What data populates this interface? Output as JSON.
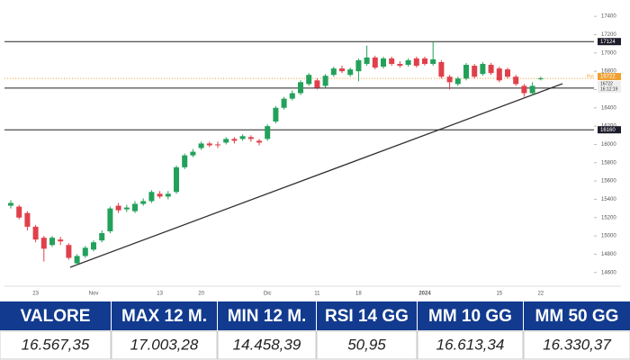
{
  "chart_data": {
    "type": "candlestick",
    "categories": [
      null,
      null,
      null,
      "23",
      null,
      null,
      null,
      null,
      null,
      null,
      "Nov",
      null,
      null,
      null,
      null,
      null,
      null,
      null,
      "13",
      null,
      null,
      null,
      null,
      "20",
      null,
      null,
      null,
      null,
      null,
      null,
      null,
      "Dic",
      null,
      null,
      null,
      null,
      null,
      "11",
      null,
      null,
      null,
      null,
      "18",
      null,
      null,
      null,
      null,
      null,
      null,
      null,
      "2024",
      null,
      null,
      null,
      null,
      null,
      null,
      null,
      null,
      "15",
      null,
      null,
      null,
      null,
      "22"
    ],
    "open": [
      15330,
      15320,
      15250,
      15100,
      14980,
      14900,
      14960,
      14900,
      14700,
      14780,
      14850,
      14950,
      15050,
      15330,
      15290,
      15270,
      15350,
      15380,
      15460,
      15430,
      15480,
      15750,
      15880,
      15960,
      16010,
      16000,
      16020,
      16060,
      16060,
      16080,
      16040,
      16060,
      16250,
      16400,
      16500,
      16560,
      16660,
      16700,
      16640,
      16760,
      16830,
      16760,
      16800,
      16880,
      16950,
      16850,
      16940,
      16880,
      16870,
      16940,
      16940,
      16880,
      16900,
      16740,
      16660,
      16720,
      16860,
      16770,
      16870,
      16830,
      16820,
      16740,
      16640,
      16560,
      16720
    ],
    "high": [
      15390,
      15340,
      15270,
      15120,
      15000,
      15000,
      14990,
      14920,
      14800,
      14890,
      14950,
      15060,
      15320,
      15360,
      15340,
      15380,
      15410,
      15500,
      15490,
      15490,
      15770,
      15900,
      15950,
      16030,
      16030,
      16030,
      16080,
      16080,
      16110,
      16100,
      16060,
      16220,
      16420,
      16520,
      16590,
      16700,
      16780,
      16720,
      16770,
      16850,
      16860,
      16840,
      16940,
      17080,
      16970,
      16960,
      16960,
      16910,
      16940,
      16960,
      16960,
      17120,
      16920,
      16760,
      16740,
      16890,
      16880,
      16900,
      16890,
      16850,
      16840,
      16760,
      16660,
      16680,
      16740
    ],
    "low": [
      15300,
      15180,
      15060,
      14930,
      14720,
      14880,
      14900,
      14740,
      14680,
      14760,
      14830,
      14930,
      15030,
      15250,
      15260,
      15250,
      15330,
      15360,
      15410,
      15400,
      15460,
      15730,
      15860,
      15940,
      15970,
      15960,
      16000,
      16010,
      16040,
      16030,
      15990,
      16040,
      16230,
      16380,
      16480,
      16540,
      16640,
      16600,
      16620,
      16740,
      16780,
      16740,
      16690,
      16860,
      16820,
      16830,
      16860,
      16840,
      16850,
      16840,
      16860,
      16860,
      16720,
      16600,
      16640,
      16700,
      16720,
      16750,
      16760,
      16680,
      16720,
      16640,
      16520,
      16540,
      16700
    ],
    "close": [
      15360,
      15200,
      15100,
      14960,
      14860,
      14980,
      14940,
      14760,
      14780,
      14870,
      14930,
      15030,
      15300,
      15280,
      15310,
      15350,
      15380,
      15480,
      15430,
      15460,
      15750,
      15880,
      15920,
      16010,
      15990,
      15990,
      16060,
      16040,
      16090,
      16060,
      16020,
      16200,
      16400,
      16500,
      16560,
      16680,
      16760,
      16620,
      16750,
      16830,
      16800,
      16820,
      16920,
      16950,
      16840,
      16940,
      16880,
      16860,
      16920,
      16860,
      16880,
      16930,
      16740,
      16680,
      16720,
      16870,
      16740,
      16880,
      16780,
      16700,
      16740,
      16660,
      16560,
      16640,
      16722
    ],
    "up_color": "#23a15b",
    "down_color": "#e0404c",
    "ylim": [
      14450,
      17500
    ],
    "yticks": [
      14600,
      14800,
      15000,
      15200,
      15400,
      15600,
      15800,
      16000,
      16200,
      16400,
      16600,
      16800,
      17000,
      17200,
      17400
    ],
    "levels": [
      17124,
      16616,
      16160
    ],
    "price_tag": {
      "label": "Pre",
      "value": 16722,
      "time": "16:12:19"
    }
  },
  "table": {
    "headers": [
      "VALORE",
      "MAX 12 M.",
      "MIN 12 M.",
      "RSI 14 GG",
      "MM 10 GG",
      "MM 50 GG"
    ],
    "rows": [
      [
        "16.567,35",
        "17.003,28",
        "14.458,39",
        "50,95",
        "16.613,34",
        "16.330,37"
      ]
    ]
  }
}
